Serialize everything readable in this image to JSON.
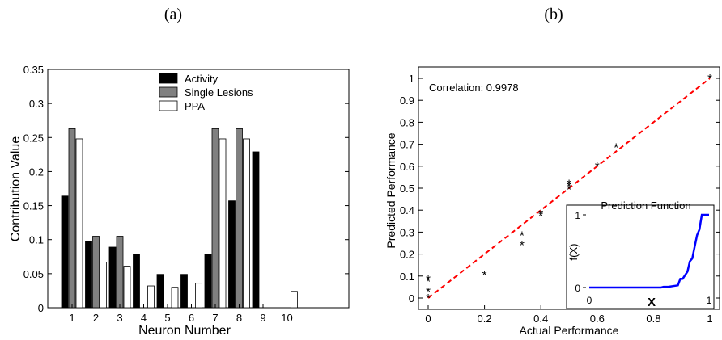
{
  "chart_data": [
    {
      "panel_label": "(a)",
      "type": "bar",
      "xlabel": "Neuron Number",
      "ylabel": "Contribution Value",
      "categories": [
        "1",
        "2",
        "3",
        "4",
        "5",
        "6",
        "7",
        "8",
        "9",
        "10"
      ],
      "ylim": [
        0,
        0.35
      ],
      "yticks": [
        "0",
        "0.05",
        "0.1",
        "0.15",
        "0.2",
        "0.25",
        "0.3",
        "0.35"
      ],
      "legend_position": "top-center",
      "series": [
        {
          "name": "Activity",
          "color": "#000000",
          "values": [
            0.164,
            0.098,
            0.089,
            0.079,
            0.049,
            0.049,
            0.079,
            0.157,
            0.229,
            0
          ]
        },
        {
          "name": "Single Lesions",
          "color": "#808080",
          "values": [
            0.263,
            0.105,
            0.105,
            0,
            0,
            0,
            0.263,
            0.263,
            0,
            0
          ]
        },
        {
          "name": "PPA",
          "color": "#ffffff",
          "values": [
            0.248,
            0.067,
            0.061,
            0.032,
            0.03,
            0.036,
            0.248,
            0.248,
            0,
            0.024
          ]
        }
      ]
    },
    {
      "panel_label": "(b)",
      "type": "scatter",
      "xlabel": "Actual Performance",
      "ylabel": "Predicted Performance",
      "annotation": "Correlation: 0.9978",
      "xlim": [
        0,
        1
      ],
      "ylim": [
        0,
        1
      ],
      "xticks": [
        "0",
        "0.2",
        "0.4",
        "0.6",
        "0.8",
        "1"
      ],
      "yticks": [
        "0",
        "0.1",
        "0.2",
        "0.3",
        "0.4",
        "0.5",
        "0.6",
        "0.7",
        "0.8",
        "0.9",
        "1"
      ],
      "fit_line": {
        "style": "dashed",
        "color": "#ff0000",
        "x": [
          0,
          1
        ],
        "y": [
          0,
          1
        ]
      },
      "points": [
        {
          "x": 0,
          "y": 0.0
        },
        {
          "x": 0,
          "y": 0.03
        },
        {
          "x": 0,
          "y": 0.075
        },
        {
          "x": 0,
          "y": 0.085
        },
        {
          "x": 0.2,
          "y": 0.105
        },
        {
          "x": 0.333,
          "y": 0.24
        },
        {
          "x": 0.333,
          "y": 0.285
        },
        {
          "x": 0.4,
          "y": 0.375
        },
        {
          "x": 0.4,
          "y": 0.385
        },
        {
          "x": 0.5,
          "y": 0.495
        },
        {
          "x": 0.5,
          "y": 0.51
        },
        {
          "x": 0.5,
          "y": 0.52
        },
        {
          "x": 0.6,
          "y": 0.6
        },
        {
          "x": 0.667,
          "y": 0.685
        },
        {
          "x": 1,
          "y": 1
        }
      ],
      "inset": {
        "title": "Prediction Function",
        "xlabel": "X",
        "ylabel": "f(X)",
        "xticks": [
          "0",
          "1"
        ],
        "yticks": [
          "0",
          "1"
        ],
        "line_color": "#0000ff",
        "curve": {
          "x": [
            0,
            0.6,
            0.62,
            0.66,
            0.7,
            0.74,
            0.76,
            0.78,
            0.82,
            0.84,
            0.86,
            0.88,
            0.9,
            0.92,
            0.93,
            0.94,
            0.96,
            1.0
          ],
          "y": [
            0,
            0,
            0.01,
            0.01,
            0.02,
            0.03,
            0.12,
            0.12,
            0.22,
            0.36,
            0.4,
            0.56,
            0.72,
            0.8,
            0.9,
            1.0,
            1.0,
            1.0
          ]
        }
      }
    }
  ]
}
